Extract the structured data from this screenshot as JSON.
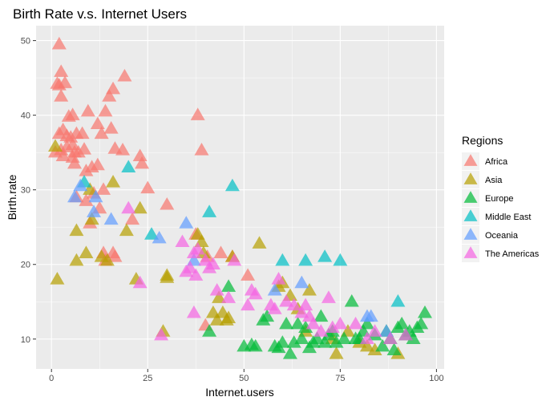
{
  "chart_data": {
    "type": "scatter",
    "title": "Birth Rate v.s. Internet Users",
    "xlabel": "Internet.users",
    "ylabel": "Birth.rate",
    "xlim": [
      -4,
      102
    ],
    "ylim": [
      6,
      52
    ],
    "x_ticks": [
      0,
      25,
      50,
      75,
      100
    ],
    "y_ticks": [
      10,
      20,
      30,
      40,
      50
    ],
    "x_tick_labels": [
      "0",
      "25",
      "50",
      "75",
      "100"
    ],
    "y_tick_labels": [
      "10",
      "20",
      "30",
      "40",
      "50"
    ],
    "grid": true,
    "marker": "triangle",
    "legend": {
      "title": "Regions",
      "position": "right"
    },
    "series": [
      {
        "name": "Africa",
        "color": "#F8766D",
        "points": [
          [
            2,
            49.5
          ],
          [
            2.5,
            45.8
          ],
          [
            1.5,
            44.2
          ],
          [
            2,
            44
          ],
          [
            3.5,
            44.3
          ],
          [
            2.5,
            42.5
          ],
          [
            4.5,
            39.8
          ],
          [
            5.5,
            40
          ],
          [
            9.5,
            40.5
          ],
          [
            12,
            38.8
          ],
          [
            5,
            37
          ],
          [
            2,
            37.5
          ],
          [
            3,
            38
          ],
          [
            4,
            37.2
          ],
          [
            6.5,
            37.5
          ],
          [
            8,
            37.5
          ],
          [
            1,
            35
          ],
          [
            2.5,
            35.3
          ],
          [
            4,
            35.7
          ],
          [
            5.5,
            36
          ],
          [
            6,
            35
          ],
          [
            7,
            35
          ],
          [
            8.5,
            35.4
          ],
          [
            3,
            34.5
          ],
          [
            5.5,
            34.3
          ],
          [
            6,
            33.5
          ],
          [
            10.5,
            33
          ],
          [
            9,
            32.5
          ],
          [
            12,
            33.3
          ],
          [
            13,
            37.5
          ],
          [
            14,
            40.5
          ],
          [
            15,
            42.5
          ],
          [
            16,
            43.5
          ],
          [
            19,
            45.2
          ],
          [
            15.5,
            38.2
          ],
          [
            16.5,
            35.5
          ],
          [
            18.5,
            35.3
          ],
          [
            13.5,
            30
          ],
          [
            11,
            29.5
          ],
          [
            9,
            28.5
          ],
          [
            6.5,
            29
          ],
          [
            23,
            34.5
          ],
          [
            23.5,
            33.5
          ],
          [
            25,
            30.2
          ],
          [
            30,
            28
          ],
          [
            38,
            40
          ],
          [
            39,
            35.3
          ],
          [
            37.5,
            24
          ],
          [
            40.5,
            21
          ],
          [
            44,
            21.5
          ],
          [
            47,
            21
          ],
          [
            51,
            18.5
          ],
          [
            40,
            11.8
          ],
          [
            13.5,
            21.5
          ],
          [
            16,
            21.5
          ],
          [
            12.5,
            27.5
          ],
          [
            16.5,
            21
          ],
          [
            14,
            20.5
          ],
          [
            10,
            25.5
          ],
          [
            21,
            26
          ]
        ]
      },
      {
        "name": "Asia",
        "color": "#B79F00",
        "points": [
          [
            1,
            35.8
          ],
          [
            1.5,
            18
          ],
          [
            6.5,
            24.5
          ],
          [
            6.5,
            20.5
          ],
          [
            9,
            21.5
          ],
          [
            10,
            30
          ],
          [
            10.5,
            26
          ],
          [
            13,
            21
          ],
          [
            14.5,
            20.5
          ],
          [
            16,
            31
          ],
          [
            19.5,
            24.5
          ],
          [
            22,
            18
          ],
          [
            23,
            27.5
          ],
          [
            30,
            18.5
          ],
          [
            30,
            18.2
          ],
          [
            29,
            11
          ],
          [
            38,
            24
          ],
          [
            39,
            23
          ],
          [
            39.5,
            21.5
          ],
          [
            42,
            13.5
          ],
          [
            43,
            12.5
          ],
          [
            43.5,
            15.5
          ],
          [
            44.5,
            13.5
          ],
          [
            45.5,
            12.5
          ],
          [
            46,
            12.8
          ],
          [
            47,
            21
          ],
          [
            54,
            22.8
          ],
          [
            59,
            17
          ],
          [
            60,
            17.5
          ],
          [
            62,
            15.8
          ],
          [
            64,
            14
          ],
          [
            66,
            11
          ],
          [
            67,
            16.5
          ],
          [
            73,
            10
          ],
          [
            74,
            8
          ],
          [
            77,
            11
          ],
          [
            80,
            9.5
          ],
          [
            82,
            9
          ],
          [
            84,
            8.5
          ],
          [
            90,
            8
          ]
        ]
      },
      {
        "name": "Europe",
        "color": "#00BA38",
        "points": [
          [
            41,
            11
          ],
          [
            46,
            17
          ],
          [
            50,
            9
          ],
          [
            52,
            9.2
          ],
          [
            53,
            9
          ],
          [
            55,
            12.5
          ],
          [
            56,
            13
          ],
          [
            58,
            9
          ],
          [
            59,
            8.8
          ],
          [
            60,
            9.5
          ],
          [
            61,
            12
          ],
          [
            62,
            8
          ],
          [
            63,
            9.5
          ],
          [
            64,
            12
          ],
          [
            65,
            10
          ],
          [
            66,
            11.5
          ],
          [
            67,
            8.8
          ],
          [
            68,
            9.5
          ],
          [
            69,
            10
          ],
          [
            70,
            13
          ],
          [
            71,
            9.5
          ],
          [
            72,
            10.5
          ],
          [
            73,
            11
          ],
          [
            74,
            9.5
          ],
          [
            76,
            10
          ],
          [
            78,
            15
          ],
          [
            79,
            10
          ],
          [
            80,
            10
          ],
          [
            81,
            11
          ],
          [
            82,
            12
          ],
          [
            84,
            10.5
          ],
          [
            86,
            9
          ],
          [
            87,
            11
          ],
          [
            88,
            10
          ],
          [
            89,
            8.5
          ],
          [
            90,
            11.5
          ],
          [
            91,
            12
          ],
          [
            92,
            10.5
          ],
          [
            93,
            11
          ],
          [
            94,
            10
          ],
          [
            95,
            11.5
          ],
          [
            96,
            12
          ],
          [
            97,
            13.5
          ]
        ]
      },
      {
        "name": "Middle East",
        "color": "#00BFC4",
        "points": [
          [
            8.5,
            31
          ],
          [
            20,
            33
          ],
          [
            26,
            24
          ],
          [
            41,
            27
          ],
          [
            47,
            30.5
          ],
          [
            60,
            20.5
          ],
          [
            66,
            20.5
          ],
          [
            71,
            21
          ],
          [
            75,
            20.5
          ],
          [
            90,
            15
          ]
        ]
      },
      {
        "name": "Oceania",
        "color": "#619CFF",
        "points": [
          [
            6,
            29
          ],
          [
            7.5,
            30.5
          ],
          [
            11,
            27
          ],
          [
            11.5,
            29
          ],
          [
            15.5,
            26
          ],
          [
            28,
            23.5
          ],
          [
            35,
            25.5
          ],
          [
            37,
            20.5
          ],
          [
            58,
            16.5
          ],
          [
            65,
            17.5
          ],
          [
            82,
            13
          ],
          [
            83,
            13
          ],
          [
            87,
            11
          ]
        ]
      },
      {
        "name": "The Americas",
        "color": "#F564E3",
        "points": [
          [
            20,
            27.5
          ],
          [
            23,
            17.5
          ],
          [
            28.5,
            10.5
          ],
          [
            34,
            23
          ],
          [
            35,
            19
          ],
          [
            36,
            19.5
          ],
          [
            37,
            21.5
          ],
          [
            37.5,
            18.5
          ],
          [
            37,
            13.5
          ],
          [
            38,
            22
          ],
          [
            40,
            20.5
          ],
          [
            41,
            19.5
          ],
          [
            42,
            20
          ],
          [
            43,
            16.5
          ],
          [
            46,
            15.5
          ],
          [
            47.5,
            20.5
          ],
          [
            51,
            14.5
          ],
          [
            52,
            16.5
          ],
          [
            53,
            16
          ],
          [
            57,
            14.5
          ],
          [
            58,
            14
          ],
          [
            59,
            18
          ],
          [
            61,
            15
          ],
          [
            63,
            14.5
          ],
          [
            65,
            13.5
          ],
          [
            66,
            14.5
          ],
          [
            67,
            13
          ],
          [
            68,
            12
          ],
          [
            70,
            11
          ],
          [
            72,
            15.5
          ],
          [
            73,
            11.5
          ],
          [
            75,
            12
          ],
          [
            79,
            12
          ],
          [
            82,
            10
          ],
          [
            84,
            11
          ],
          [
            88,
            10
          ],
          [
            92,
            10.5
          ]
        ]
      }
    ]
  }
}
